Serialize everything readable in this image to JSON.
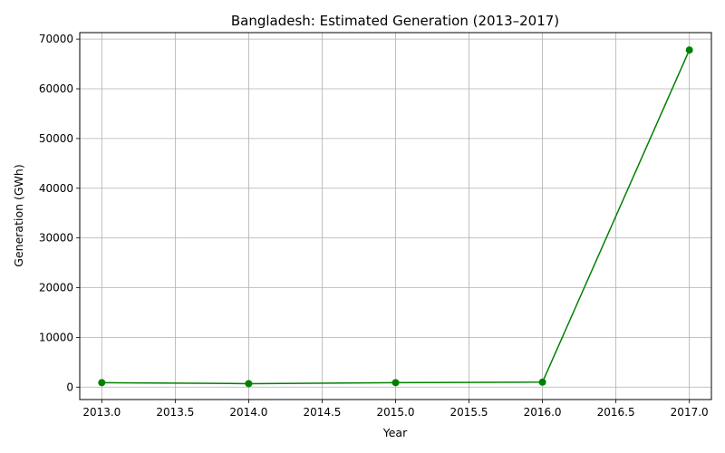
{
  "chart_data": {
    "type": "line",
    "title": "Bangladesh: Estimated Generation (2013–2017)",
    "xlabel": "Year",
    "ylabel": "Generation (GWh)",
    "xlim": [
      2012.85,
      2017.15
    ],
    "ylim": [
      -2500,
      71300
    ],
    "x_ticks": [
      2013.0,
      2013.5,
      2014.0,
      2014.5,
      2015.0,
      2015.5,
      2016.0,
      2016.5,
      2017.0
    ],
    "x_tick_labels": [
      "2013.0",
      "2013.5",
      "2014.0",
      "2014.5",
      "2015.0",
      "2015.5",
      "2016.0",
      "2016.5",
      "2017.0"
    ],
    "y_ticks": [
      0,
      10000,
      20000,
      30000,
      40000,
      50000,
      60000,
      70000
    ],
    "y_tick_labels": [
      "0",
      "10000",
      "20000",
      "30000",
      "40000",
      "50000",
      "60000",
      "70000"
    ],
    "grid": true,
    "series": [
      {
        "color": "#008000",
        "marker": "circle",
        "x": [
          2013,
          2014,
          2015,
          2016,
          2017
        ],
        "y": [
          900,
          700,
          900,
          1000,
          67800
        ]
      }
    ]
  }
}
